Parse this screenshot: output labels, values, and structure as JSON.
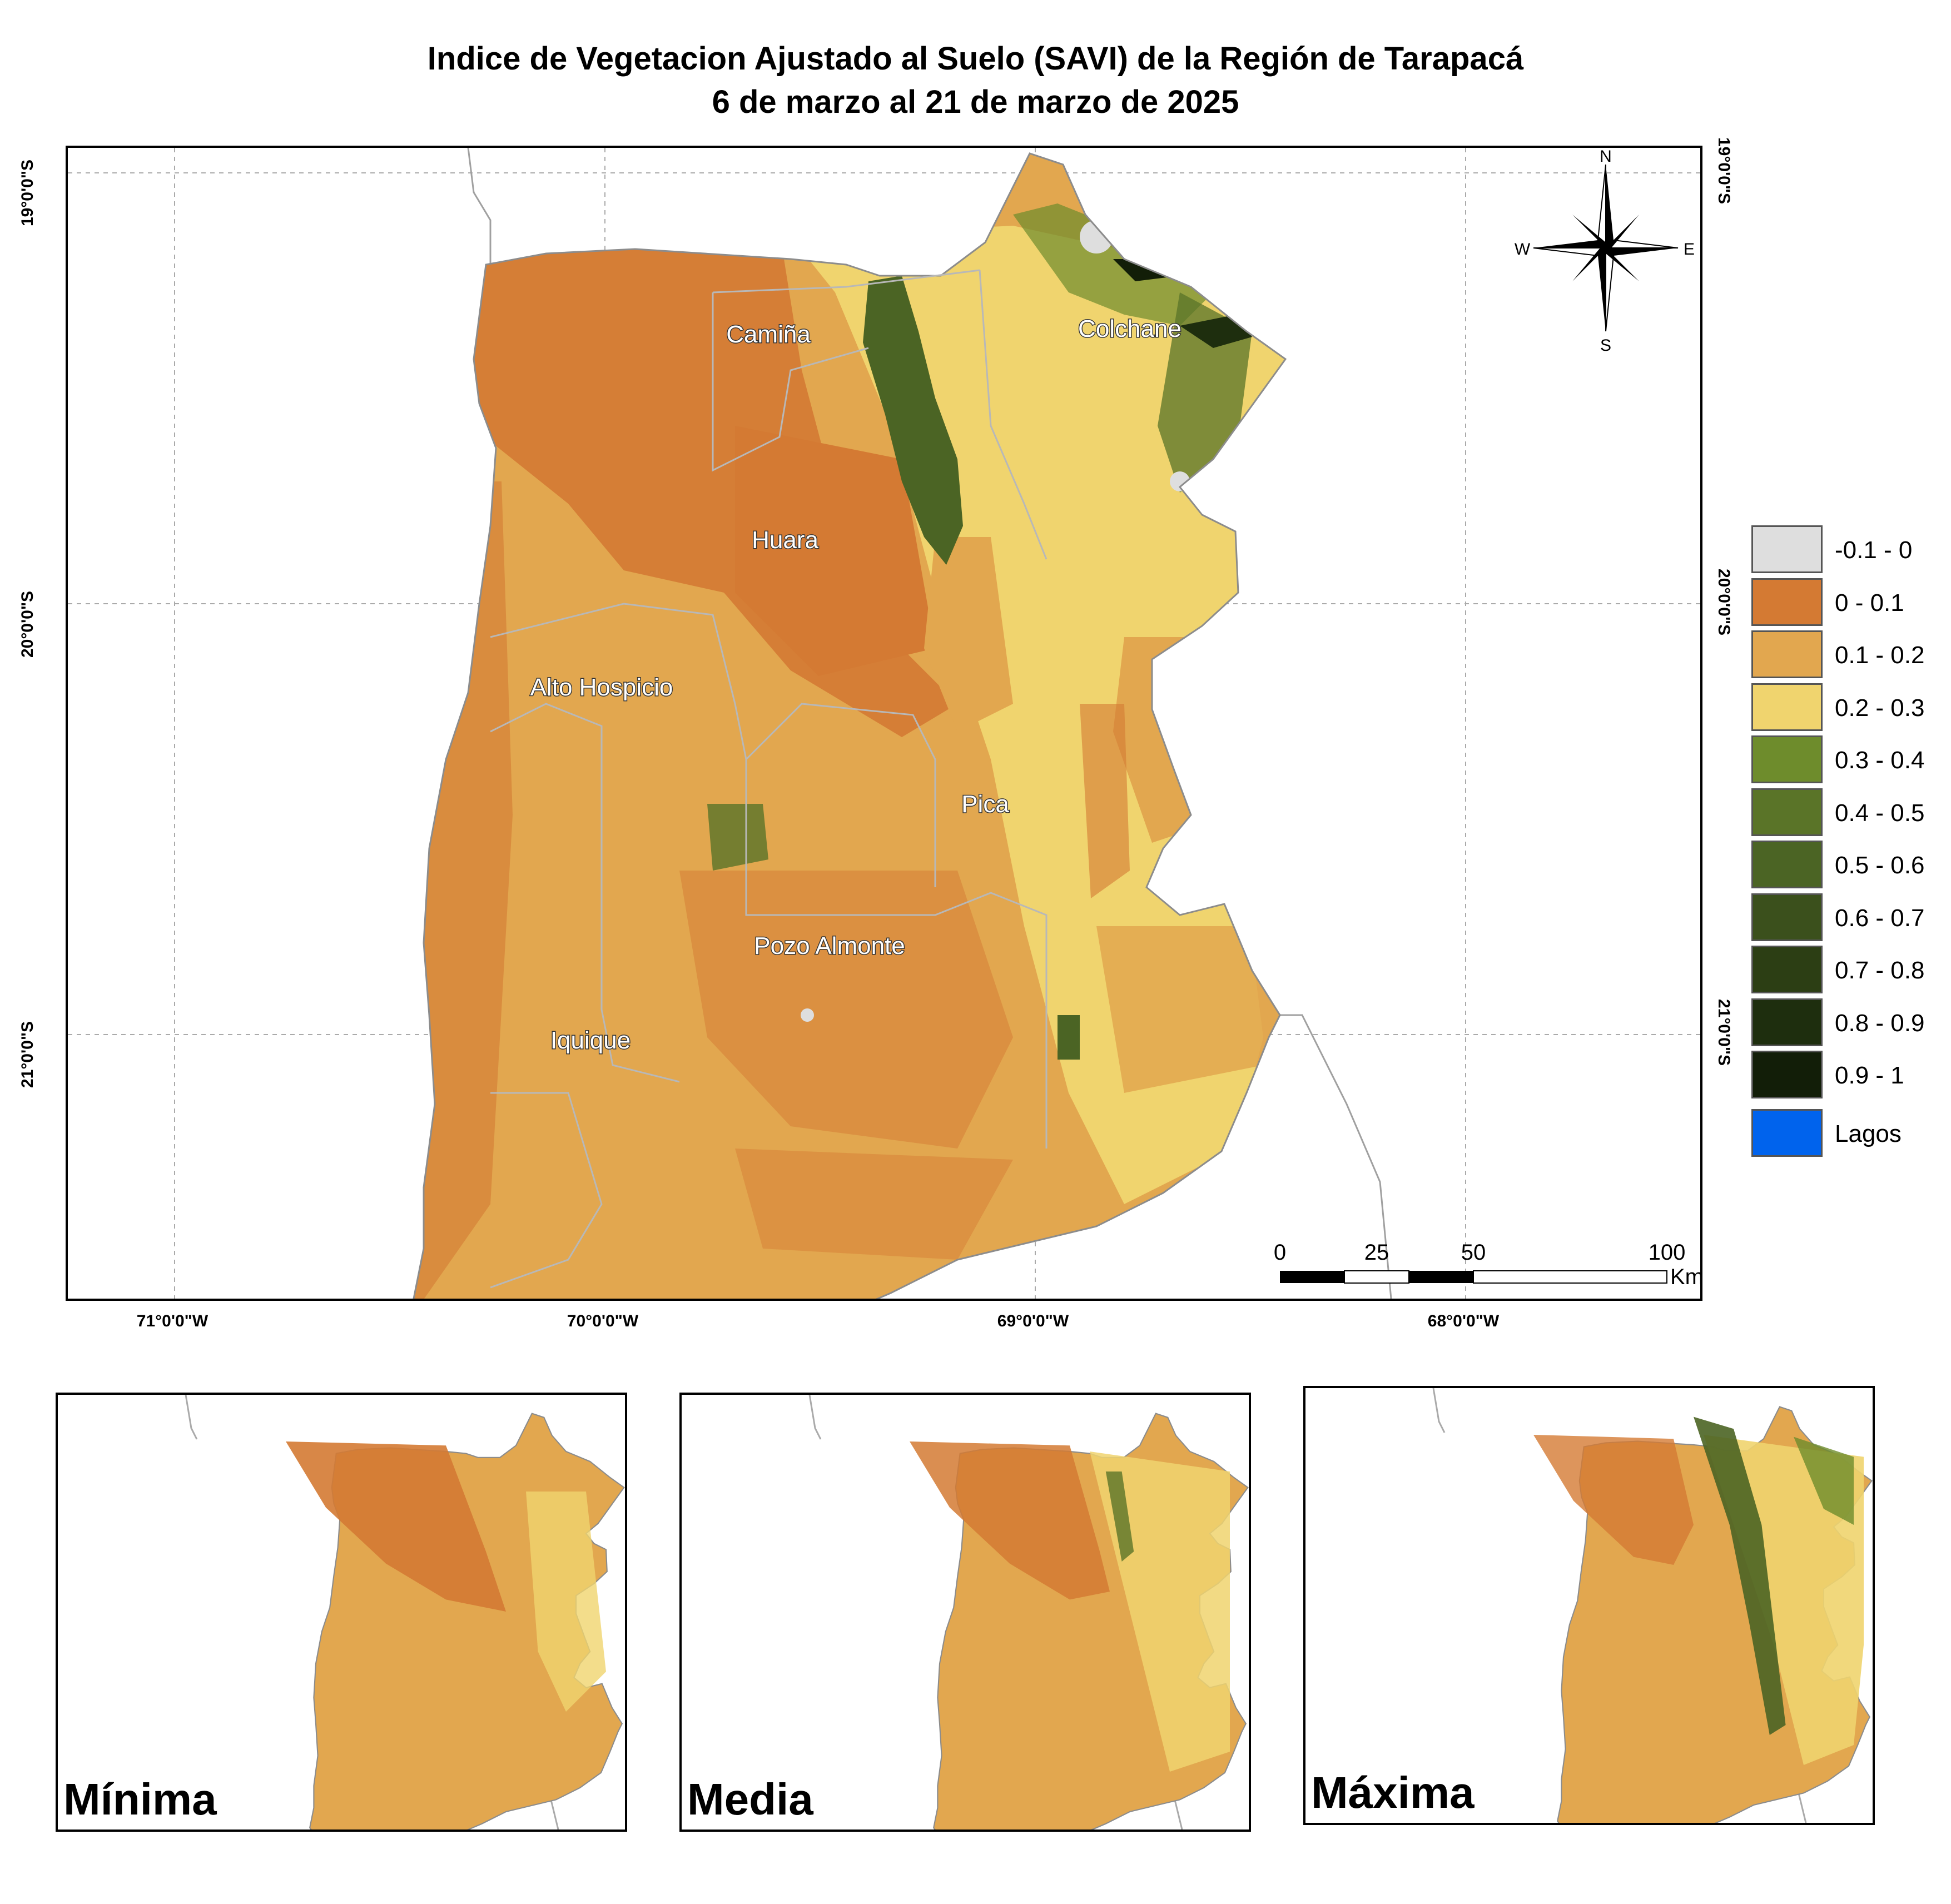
{
  "title": {
    "line1": "Indice de Vegetacion Ajustado al Suelo (SAVI) de la Región de Tarapacá",
    "line2": "6 de marzo al 21 de marzo de 2025"
  },
  "map": {
    "latitude_labels": [
      "19°0'0\"S",
      "20°0'0\"S",
      "21°0'0\"S"
    ],
    "longitude_labels": [
      "71°0'0\"W",
      "70°0'0\"W",
      "69°0'0\"W",
      "68°0'0\"W"
    ],
    "communes": [
      {
        "name": "Camiña"
      },
      {
        "name": "Colchane"
      },
      {
        "name": "Huara"
      },
      {
        "name": "Alto Hospicio"
      },
      {
        "name": "Pica"
      },
      {
        "name": "Pozo Almonte"
      },
      {
        "name": "Iquique"
      }
    ],
    "compass": {
      "n": "N",
      "s": "S",
      "e": "E",
      "w": "W"
    },
    "scale_bar": {
      "ticks": [
        "0",
        "25",
        "50",
        "100"
      ],
      "unit": "Km"
    }
  },
  "legend": [
    {
      "label": "-0.1 - 0",
      "color": "#dedede"
    },
    {
      "label": "0 - 0.1",
      "color": "#d47a33"
    },
    {
      "label": "0.1 - 0.2",
      "color": "#e2a74f"
    },
    {
      "label": "0.2 - 0.3",
      "color": "#f0d46e"
    },
    {
      "label": "0.3 - 0.4",
      "color": "#6e8c2c"
    },
    {
      "label": "0.4 - 0.5",
      "color": "#5a7428"
    },
    {
      "label": "0.5 - 0.6",
      "color": "#4b6424"
    },
    {
      "label": "0.6 - 0.7",
      "color": "#3b501c"
    },
    {
      "label": "0.7 - 0.8",
      "color": "#2c3e14"
    },
    {
      "label": "0.8 - 0.9",
      "color": "#1e2e0e"
    },
    {
      "label": "0.9 - 1",
      "color": "#121e08"
    },
    {
      "label": "Lagos",
      "color": "#0063ed"
    }
  ],
  "insets": [
    {
      "label": "Mínima"
    },
    {
      "label": "Media"
    },
    {
      "label": "Máxima"
    }
  ]
}
